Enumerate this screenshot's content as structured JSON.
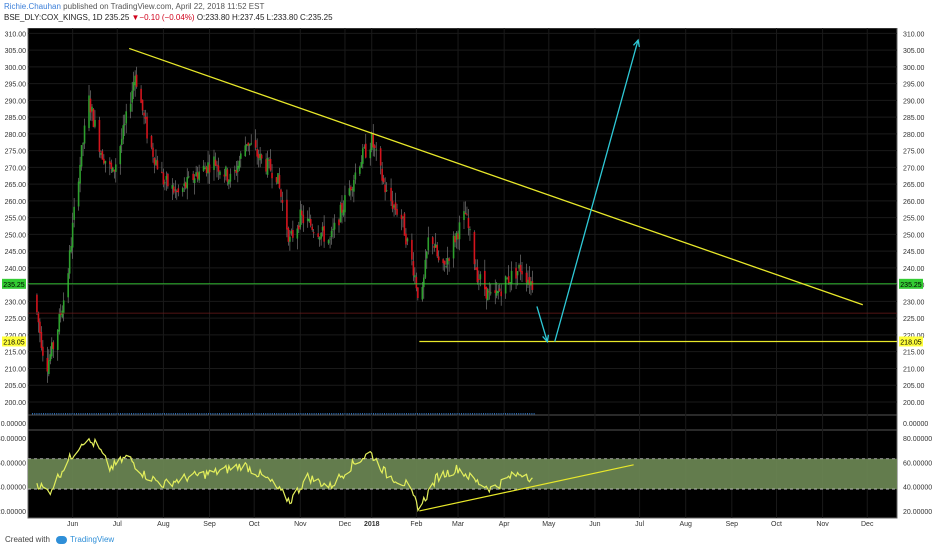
{
  "header": {
    "author": "Richie.Chauhan",
    "published_text": "published on TradingView.com, April 22, 2018 11:52 EST",
    "symbol": "BSE_DLY:COX_KINGS, 1D",
    "last": "235.25",
    "change_marker": "▼",
    "change": "−0.10 (−0.04%)",
    "open": "O:233.80",
    "high": "H:237.45",
    "low": "L:233.80",
    "close": "C:235.25"
  },
  "footer": {
    "created_with": "Created with",
    "brand": "TradingView"
  },
  "colors": {
    "background": "#000000",
    "up": "#2ea02e",
    "down": "#d4141d",
    "trendline": "#e8e82a",
    "arrow": "#2ec9d6",
    "price_line": "#33cc33",
    "rsi_line": "#e3ef5c",
    "rsi_band": "#6e8a55"
  },
  "chart_data": {
    "type": "candlestick",
    "x_ticks": [
      "Jun",
      "Jul",
      "Aug",
      "Sep",
      "Oct",
      "Nov",
      "Dec",
      "2018",
      "Feb",
      "Mar",
      "Apr",
      "May",
      "Jun",
      "Jul",
      "Aug",
      "Sep",
      "Oct",
      "Nov",
      "Dec"
    ],
    "price_axis": {
      "range": [
        197,
        311
      ],
      "ticks": [
        200,
        205,
        210,
        215,
        220,
        225,
        230,
        235,
        240,
        245,
        250,
        255,
        260,
        265,
        270,
        275,
        280,
        285,
        290,
        295,
        300,
        305,
        310
      ],
      "tick_labels": [
        "200.00",
        "205.00",
        "210.00",
        "215.00",
        "220.00",
        "225.00",
        "230.00",
        "235.00",
        "240.00",
        "245.00",
        "250.00",
        "255.00",
        "260.00",
        "265.00",
        "270.00",
        "275.00",
        "280.00",
        "285.00",
        "290.00",
        "295.00",
        "300.00",
        "305.00",
        "310.00"
      ]
    },
    "current_price": {
      "value": 235.25,
      "label": "235.25"
    },
    "support_level": {
      "value": 218.05,
      "label": "218.05"
    },
    "volume_axis": {
      "labels": [
        "0.00000"
      ]
    },
    "price_path": [
      {
        "t": "2017-05-20",
        "p": 232
      },
      {
        "t": "2017-05-28",
        "p": 210
      },
      {
        "t": "2017-06-03",
        "p": 218
      },
      {
        "t": "2017-06-11",
        "p": 235
      },
      {
        "t": "2017-06-18",
        "p": 265
      },
      {
        "t": "2017-06-26",
        "p": 290
      },
      {
        "t": "2017-07-04",
        "p": 275
      },
      {
        "t": "2017-07-12",
        "p": 268
      },
      {
        "t": "2017-07-20",
        "p": 282
      },
      {
        "t": "2017-07-27",
        "p": 298
      },
      {
        "t": "2017-08-05",
        "p": 278
      },
      {
        "t": "2017-08-15",
        "p": 266
      },
      {
        "t": "2017-08-25",
        "p": 262
      },
      {
        "t": "2017-09-06",
        "p": 268
      },
      {
        "t": "2017-09-18",
        "p": 272
      },
      {
        "t": "2017-09-30",
        "p": 266
      },
      {
        "t": "2017-10-10",
        "p": 278
      },
      {
        "t": "2017-10-20",
        "p": 272
      },
      {
        "t": "2017-10-30",
        "p": 268
      },
      {
        "t": "2017-11-08",
        "p": 248
      },
      {
        "t": "2017-11-15",
        "p": 255
      },
      {
        "t": "2017-11-25",
        "p": 252
      },
      {
        "t": "2017-12-05",
        "p": 248
      },
      {
        "t": "2017-12-15",
        "p": 260
      },
      {
        "t": "2017-12-25",
        "p": 272
      },
      {
        "t": "2018-01-02",
        "p": 278
      },
      {
        "t": "2018-01-12",
        "p": 262
      },
      {
        "t": "2018-01-22",
        "p": 255
      },
      {
        "t": "2018-01-30",
        "p": 240
      },
      {
        "t": "2018-02-04",
        "p": 228
      },
      {
        "t": "2018-02-10",
        "p": 252
      },
      {
        "t": "2018-02-18",
        "p": 238
      },
      {
        "t": "2018-02-26",
        "p": 248
      },
      {
        "t": "2018-03-06",
        "p": 256
      },
      {
        "t": "2018-03-14",
        "p": 238
      },
      {
        "t": "2018-03-24",
        "p": 230
      },
      {
        "t": "2018-04-02",
        "p": 236
      },
      {
        "t": "2018-04-12",
        "p": 240
      },
      {
        "t": "2018-04-20",
        "p": 235.25
      }
    ],
    "rsi": {
      "axis_ticks": [
        20,
        40,
        60,
        80
      ],
      "tick_labels": [
        "20.00000",
        "40.00000",
        "60.00000",
        "80.00000"
      ],
      "band": [
        38,
        63
      ],
      "path": [
        {
          "t": "2017-05-20",
          "v": 45
        },
        {
          "t": "2017-05-30",
          "v": 35
        },
        {
          "t": "2017-06-10",
          "v": 58
        },
        {
          "t": "2017-06-22",
          "v": 78
        },
        {
          "t": "2017-07-01",
          "v": 75
        },
        {
          "t": "2017-07-10",
          "v": 55
        },
        {
          "t": "2017-07-22",
          "v": 65
        },
        {
          "t": "2017-08-02",
          "v": 50
        },
        {
          "t": "2017-08-15",
          "v": 42
        },
        {
          "t": "2017-09-01",
          "v": 48
        },
        {
          "t": "2017-09-20",
          "v": 52
        },
        {
          "t": "2017-10-08",
          "v": 58
        },
        {
          "t": "2017-10-25",
          "v": 45
        },
        {
          "t": "2017-11-08",
          "v": 28
        },
        {
          "t": "2017-11-20",
          "v": 48
        },
        {
          "t": "2017-12-05",
          "v": 40
        },
        {
          "t": "2017-12-20",
          "v": 58
        },
        {
          "t": "2018-01-01",
          "v": 68
        },
        {
          "t": "2018-01-12",
          "v": 50
        },
        {
          "t": "2018-01-25",
          "v": 42
        },
        {
          "t": "2018-02-03",
          "v": 22
        },
        {
          "t": "2018-02-15",
          "v": 48
        },
        {
          "t": "2018-03-01",
          "v": 55
        },
        {
          "t": "2018-03-12",
          "v": 45
        },
        {
          "t": "2018-03-24",
          "v": 38
        },
        {
          "t": "2018-04-05",
          "v": 48
        },
        {
          "t": "2018-04-15",
          "v": 52
        },
        {
          "t": "2018-04-20",
          "v": 45
        }
      ]
    },
    "drawings": {
      "descending_trendline": {
        "from": {
          "t": "2017-07-23",
          "p": 305.5
        },
        "to": {
          "t": "2018-11-28",
          "p": 229
        }
      },
      "support_line": {
        "from": {
          "t": "2018-02-03",
          "p": 218.05
        },
        "to": {
          "t": "2018-12-31",
          "p": 218.05
        }
      },
      "arrow_down": {
        "from": {
          "t": "2018-04-23",
          "p": 228.5
        },
        "to": {
          "t": "2018-04-30",
          "p": 218
        }
      },
      "arrow_up": {
        "from": {
          "t": "2018-05-05",
          "p": 218
        },
        "to": {
          "t": "2018-06-30",
          "p": 308
        }
      },
      "rsi_trendline": {
        "from": {
          "t": "2018-02-03",
          "v": 20
        },
        "to": {
          "t": "2018-06-27",
          "v": 58
        }
      }
    }
  }
}
